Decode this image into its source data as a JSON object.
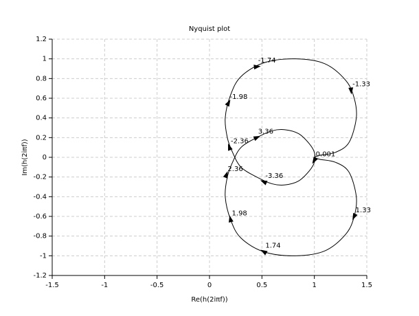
{
  "chart_data": {
    "type": "nyquist",
    "title": "Nyquist plot",
    "x_label": "Re(h(2iπf))",
    "y_label": "Im(h(2iπf))",
    "color": "#000000",
    "grid": true,
    "xlim": [
      -1.5,
      1.5
    ],
    "xticks": [
      -1.5,
      -1,
      -0.5,
      0,
      0.5,
      1,
      1.5
    ],
    "ylim": [
      -1.2,
      1.2
    ],
    "yticks": [
      -1.2,
      -1,
      -0.8,
      -0.6,
      -0.4,
      -0.2,
      0,
      0.2,
      0.4,
      0.6,
      0.8,
      1,
      1.2
    ],
    "x": [
      1.0,
      1.05,
      1.2,
      1.33,
      1.4,
      1.38,
      1.3,
      1.1,
      0.82,
      0.52,
      0.3,
      0.2,
      0.15,
      0.17,
      0.22,
      0.3,
      0.45,
      0.6,
      0.72,
      0.85,
      0.95,
      1.0,
      1.0,
      0.95,
      0.85,
      0.72,
      0.6,
      0.45,
      0.3,
      0.22,
      0.17,
      0.15,
      0.2,
      0.3,
      0.52,
      0.82,
      1.1,
      1.3,
      1.38,
      1.4,
      1.33,
      1.2,
      1.05,
      1.0
    ],
    "values": [
      0,
      -0.02,
      -0.05,
      -0.15,
      -0.4,
      -0.6,
      -0.78,
      -0.95,
      -1.0,
      -0.96,
      -0.82,
      -0.63,
      -0.4,
      -0.2,
      -0.05,
      0.1,
      0.2,
      0.27,
      0.28,
      0.24,
      0.14,
      0.05,
      -0.05,
      -0.14,
      -0.24,
      -0.28,
      -0.27,
      -0.2,
      -0.1,
      0.05,
      0.2,
      0.4,
      0.63,
      0.82,
      0.96,
      1.0,
      0.95,
      0.78,
      0.6,
      0.4,
      0.15,
      0.05,
      0.02,
      0
    ],
    "annotations": [
      {
        "text": "0.001",
        "x": 1.0,
        "y": -0.03
      },
      {
        "text": "1.33",
        "x": 1.38,
        "y": -0.6
      },
      {
        "text": "1.74",
        "x": 0.52,
        "y": -0.96
      },
      {
        "text": "1.98",
        "x": 0.2,
        "y": -0.63
      },
      {
        "text": "2.36",
        "x": 0.16,
        "y": -0.18
      },
      {
        "text": "3.36",
        "x": 0.45,
        "y": 0.2
      },
      {
        "text": "-3.36",
        "x": 0.52,
        "y": -0.25
      },
      {
        "text": "-2.36",
        "x": 0.19,
        "y": 0.1
      },
      {
        "text": "-1.98",
        "x": 0.18,
        "y": 0.55
      },
      {
        "text": "-1.74",
        "x": 0.45,
        "y": 0.92
      },
      {
        "text": "-1.33",
        "x": 1.35,
        "y": 0.68
      }
    ]
  }
}
